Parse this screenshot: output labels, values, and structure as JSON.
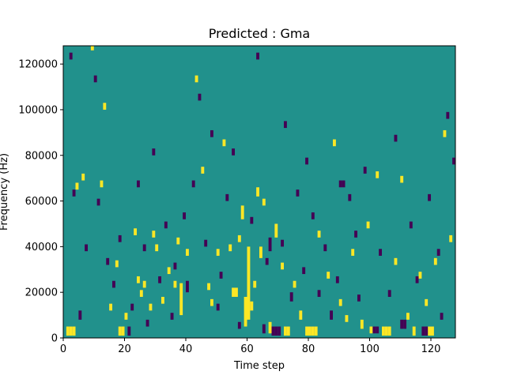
{
  "chart_data": {
    "type": "heatmap",
    "title": "Predicted : Gma",
    "xlabel": "Time step",
    "ylabel": "Frequency (Hz)",
    "xlim": [
      0,
      128
    ],
    "ylim": [
      0,
      128000
    ],
    "x_ticks": [
      0,
      20,
      40,
      60,
      80,
      100,
      120
    ],
    "y_ticks": [
      0,
      20000,
      40000,
      60000,
      80000,
      100000,
      120000
    ],
    "colormap": {
      "background": "#21918c",
      "high": "#fde725",
      "low": "#440154"
    },
    "grid": false,
    "legend": "none",
    "cells_high": [
      [
        1,
        1000,
        5000
      ],
      [
        2,
        1000,
        5000
      ],
      [
        3,
        1000,
        5000
      ],
      [
        4,
        65000,
        68000
      ],
      [
        6,
        69000,
        72000
      ],
      [
        9,
        126000,
        128000
      ],
      [
        12,
        66000,
        69000
      ],
      [
        13,
        100000,
        103000
      ],
      [
        15,
        12000,
        15000
      ],
      [
        17,
        31000,
        34000
      ],
      [
        18,
        1000,
        5000
      ],
      [
        19,
        1000,
        5000
      ],
      [
        20,
        8000,
        11000
      ],
      [
        23,
        45000,
        48000
      ],
      [
        24,
        24000,
        27000
      ],
      [
        25,
        18000,
        21000
      ],
      [
        26,
        22000,
        25000
      ],
      [
        28,
        12000,
        15000
      ],
      [
        29,
        44000,
        47000
      ],
      [
        30,
        38000,
        41000
      ],
      [
        32,
        15000,
        18000
      ],
      [
        34,
        28000,
        31000
      ],
      [
        36,
        22000,
        25000
      ],
      [
        37,
        41000,
        44000
      ],
      [
        38,
        10000,
        24000
      ],
      [
        40,
        36000,
        39000
      ],
      [
        43,
        112000,
        115000
      ],
      [
        45,
        72000,
        75000
      ],
      [
        47,
        21000,
        24000
      ],
      [
        48,
        14000,
        17000
      ],
      [
        50,
        36000,
        39000
      ],
      [
        52,
        84000,
        87000
      ],
      [
        54,
        38000,
        41000
      ],
      [
        55,
        18000,
        22000
      ],
      [
        56,
        18000,
        22000
      ],
      [
        57,
        42000,
        45000
      ],
      [
        58,
        52000,
        58000
      ],
      [
        59,
        5000,
        18000
      ],
      [
        60,
        8000,
        40000
      ],
      [
        61,
        12000,
        16000
      ],
      [
        62,
        22000,
        25000
      ],
      [
        63,
        62000,
        66000
      ],
      [
        64,
        35000,
        40000
      ],
      [
        65,
        58000,
        61000
      ],
      [
        67,
        2000,
        7000
      ],
      [
        69,
        44000,
        50000
      ],
      [
        71,
        30000,
        33000
      ],
      [
        72,
        1000,
        5000
      ],
      [
        73,
        1000,
        5000
      ],
      [
        75,
        22000,
        25000
      ],
      [
        77,
        8000,
        12000
      ],
      [
        79,
        1000,
        5000
      ],
      [
        80,
        1000,
        5000
      ],
      [
        81,
        1000,
        5000
      ],
      [
        82,
        1000,
        5000
      ],
      [
        83,
        44000,
        47000
      ],
      [
        86,
        26000,
        29000
      ],
      [
        88,
        84000,
        87000
      ],
      [
        90,
        14000,
        17000
      ],
      [
        92,
        7000,
        10000
      ],
      [
        94,
        36000,
        39000
      ],
      [
        97,
        4000,
        8000
      ],
      [
        99,
        48000,
        51000
      ],
      [
        100,
        2000,
        5000
      ],
      [
        102,
        70000,
        73000
      ],
      [
        104,
        1000,
        5000
      ],
      [
        105,
        1000,
        5000
      ],
      [
        106,
        1000,
        5000
      ],
      [
        108,
        32000,
        35000
      ],
      [
        110,
        68000,
        71000
      ],
      [
        112,
        8000,
        11000
      ],
      [
        114,
        1000,
        5000
      ],
      [
        116,
        26000,
        29000
      ],
      [
        118,
        14000,
        17000
      ],
      [
        119,
        1000,
        5000
      ],
      [
        120,
        1000,
        5000
      ],
      [
        121,
        32000,
        35000
      ],
      [
        124,
        88000,
        91000
      ],
      [
        126,
        42000,
        45000
      ]
    ],
    "cells_low": [
      [
        2,
        122000,
        125000
      ],
      [
        3,
        62000,
        65000
      ],
      [
        5,
        8000,
        12000
      ],
      [
        7,
        38000,
        41000
      ],
      [
        10,
        112000,
        115000
      ],
      [
        11,
        58000,
        61000
      ],
      [
        14,
        32000,
        35000
      ],
      [
        16,
        22000,
        25000
      ],
      [
        18,
        42000,
        45000
      ],
      [
        21,
        1000,
        5000
      ],
      [
        22,
        12000,
        15000
      ],
      [
        24,
        66000,
        69000
      ],
      [
        26,
        38000,
        41000
      ],
      [
        27,
        5000,
        8000
      ],
      [
        29,
        80000,
        83000
      ],
      [
        31,
        24000,
        27000
      ],
      [
        33,
        48000,
        51000
      ],
      [
        35,
        8000,
        11000
      ],
      [
        36,
        30000,
        33000
      ],
      [
        39,
        52000,
        55000
      ],
      [
        40,
        20000,
        25000
      ],
      [
        42,
        66000,
        69000
      ],
      [
        44,
        104000,
        107000
      ],
      [
        46,
        40000,
        43000
      ],
      [
        48,
        88000,
        91000
      ],
      [
        50,
        12000,
        15000
      ],
      [
        51,
        26000,
        29000
      ],
      [
        53,
        60000,
        63000
      ],
      [
        55,
        80000,
        83000
      ],
      [
        57,
        4000,
        7000
      ],
      [
        61,
        50000,
        53000
      ],
      [
        63,
        122000,
        125000
      ],
      [
        65,
        2000,
        6000
      ],
      [
        66,
        32000,
        35000
      ],
      [
        67,
        38000,
        44000
      ],
      [
        68,
        1000,
        5000
      ],
      [
        69,
        1000,
        5000
      ],
      [
        70,
        1000,
        5000
      ],
      [
        71,
        40000,
        43000
      ],
      [
        72,
        92000,
        95000
      ],
      [
        74,
        16000,
        20000
      ],
      [
        76,
        62000,
        65000
      ],
      [
        78,
        28000,
        31000
      ],
      [
        79,
        76000,
        79000
      ],
      [
        81,
        52000,
        55000
      ],
      [
        83,
        18000,
        21000
      ],
      [
        85,
        38000,
        41000
      ],
      [
        87,
        8000,
        12000
      ],
      [
        89,
        24000,
        27000
      ],
      [
        90,
        66000,
        69000
      ],
      [
        91,
        66000,
        69000
      ],
      [
        93,
        60000,
        63000
      ],
      [
        95,
        44000,
        47000
      ],
      [
        96,
        16000,
        19000
      ],
      [
        98,
        72000,
        75000
      ],
      [
        101,
        2000,
        5000
      ],
      [
        102,
        2000,
        5000
      ],
      [
        103,
        36000,
        39000
      ],
      [
        106,
        18000,
        21000
      ],
      [
        108,
        86000,
        89000
      ],
      [
        110,
        4000,
        8000
      ],
      [
        111,
        4000,
        8000
      ],
      [
        113,
        48000,
        51000
      ],
      [
        115,
        24000,
        27000
      ],
      [
        117,
        1000,
        5000
      ],
      [
        118,
        1000,
        5000
      ],
      [
        119,
        60000,
        63000
      ],
      [
        122,
        36000,
        39000
      ],
      [
        123,
        8000,
        11000
      ],
      [
        125,
        96000,
        99000
      ],
      [
        127,
        76000,
        79000
      ]
    ]
  }
}
